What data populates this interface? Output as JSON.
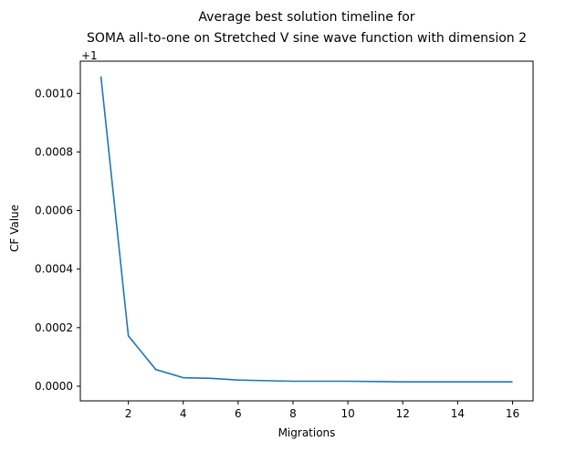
{
  "chart_data": {
    "type": "line",
    "title_line1": "Average best solution timeline for",
    "title_line2": "SOMA all-to-one on Stretched V sine wave function with dimension 2",
    "xlabel": "Migrations",
    "ylabel": "CF Value",
    "y_offset_label": "+1",
    "y_offset": 1,
    "xlim": [
      0.25,
      16.75
    ],
    "ylim": [
      -5e-05,
      0.00111
    ],
    "xticks": [
      2,
      4,
      6,
      8,
      10,
      12,
      14,
      16
    ],
    "yticks": [
      0.0,
      0.0002,
      0.0004,
      0.0006,
      0.0008,
      0.001
    ],
    "ytick_labels": [
      "0.0000",
      "0.0002",
      "0.0004",
      "0.0006",
      "0.0008",
      "0.0010"
    ],
    "grid": false,
    "series": [
      {
        "color": "#1f77b4",
        "x": [
          1,
          2,
          3,
          4,
          5,
          6,
          7,
          8,
          9,
          10,
          11,
          12,
          13,
          14,
          15,
          16
        ],
        "y": [
          0.001058,
          0.000172,
          5.7e-05,
          2.9e-05,
          2.7e-05,
          2.1e-05,
          1.9e-05,
          1.7e-05,
          1.7e-05,
          1.7e-05,
          1.6e-05,
          1.5e-05,
          1.5e-05,
          1.5e-05,
          1.5e-05,
          1.5e-05
        ]
      }
    ]
  }
}
